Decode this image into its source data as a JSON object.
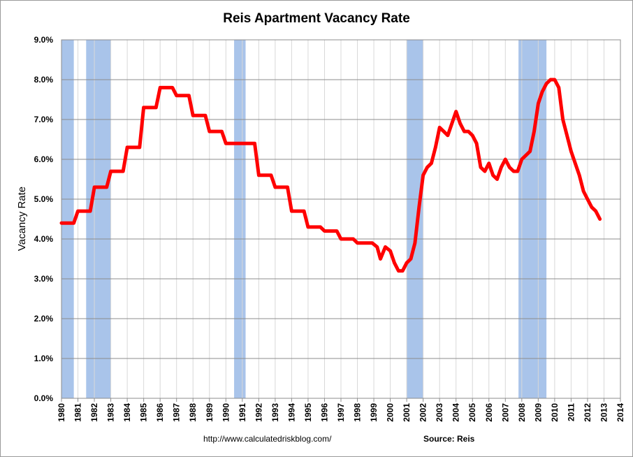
{
  "chart_data": {
    "type": "line",
    "title": "Reis Apartment Vacancy Rate",
    "ylabel": "Vacancy Rate",
    "xlabel": "",
    "ylim": [
      0,
      9
    ],
    "xlim": [
      1980,
      2014
    ],
    "y_ticks": [
      "0.0%",
      "1.0%",
      "2.0%",
      "3.0%",
      "4.0%",
      "5.0%",
      "6.0%",
      "7.0%",
      "8.0%",
      "9.0%"
    ],
    "x_ticks": [
      "1980",
      "1981",
      "1982",
      "1983",
      "1984",
      "1985",
      "1986",
      "1987",
      "1988",
      "1989",
      "1990",
      "1991",
      "1992",
      "1993",
      "1994",
      "1995",
      "1996",
      "1997",
      "1998",
      "1999",
      "2000",
      "2001",
      "2002",
      "2003",
      "2004",
      "2005",
      "2006",
      "2007",
      "2008",
      "2009",
      "2010",
      "2011",
      "2012",
      "2013",
      "2014"
    ],
    "grid": true,
    "line_color": "#ff0000",
    "recession_color": "#a9c4ea",
    "recessions": [
      [
        1980.0,
        1980.75
      ],
      [
        1981.5,
        1983.0
      ],
      [
        1990.5,
        1991.2
      ],
      [
        2001.0,
        2002.0
      ],
      [
        2007.8,
        2009.5
      ]
    ],
    "series": [
      {
        "x": [
          1980.0,
          1980.75,
          1981.0,
          1981.75,
          1982.0,
          1982.75,
          1983.0,
          1983.75,
          1984.0,
          1984.75,
          1985.0,
          1985.75,
          1986.0,
          1986.75,
          1987.0,
          1987.75,
          1988.0,
          1988.75,
          1989.0,
          1989.75,
          1990.0,
          1991.75,
          1992.0,
          1992.75,
          1993.0,
          1993.75,
          1994.0,
          1994.75,
          1995.0,
          1995.75,
          1996.0,
          1996.75,
          1997.0,
          1997.75,
          1998.0,
          1998.5,
          1998.9,
          1999.2,
          1999.4,
          1999.7,
          2000.0,
          2000.25,
          2000.5,
          2000.75,
          2001.0,
          2001.25,
          2001.5,
          2001.75,
          2002.0,
          2002.25,
          2002.5,
          2002.75,
          2003.0,
          2003.25,
          2003.5,
          2003.75,
          2004.0,
          2004.25,
          2004.5,
          2004.75,
          2005.0,
          2005.25,
          2005.5,
          2005.75,
          2006.0,
          2006.25,
          2006.5,
          2006.75,
          2007.0,
          2007.25,
          2007.5,
          2007.75,
          2008.0,
          2008.25,
          2008.5,
          2008.75,
          2009.0,
          2009.25,
          2009.5,
          2009.75,
          2010.0,
          2010.25,
          2010.5,
          2010.75,
          2011.0,
          2011.25,
          2011.5,
          2011.75,
          2012.0,
          2012.25,
          2012.5,
          2012.75
        ],
        "values": [
          4.4,
          4.4,
          4.7,
          4.7,
          5.3,
          5.3,
          5.7,
          5.7,
          6.3,
          6.3,
          7.3,
          7.3,
          7.8,
          7.8,
          7.6,
          7.6,
          7.1,
          7.1,
          6.7,
          6.7,
          6.4,
          6.4,
          5.6,
          5.6,
          5.3,
          5.3,
          4.7,
          4.7,
          4.3,
          4.3,
          4.2,
          4.2,
          4.0,
          4.0,
          3.9,
          3.9,
          3.9,
          3.8,
          3.5,
          3.8,
          3.7,
          3.4,
          3.2,
          3.2,
          3.4,
          3.5,
          3.9,
          4.8,
          5.6,
          5.8,
          5.9,
          6.3,
          6.8,
          6.7,
          6.6,
          6.9,
          7.2,
          6.9,
          6.7,
          6.7,
          6.6,
          6.4,
          5.8,
          5.7,
          5.9,
          5.6,
          5.5,
          5.8,
          6.0,
          5.8,
          5.7,
          5.7,
          6.0,
          6.1,
          6.2,
          6.7,
          7.4,
          7.7,
          7.9,
          8.0,
          8.0,
          7.8,
          7.0,
          6.6,
          6.2,
          5.9,
          5.6,
          5.2,
          5.0,
          4.8,
          4.7,
          4.5
        ]
      }
    ],
    "footer": {
      "url": "http://www.calculatedriskblog.com/",
      "source": "Source: Reis"
    }
  }
}
